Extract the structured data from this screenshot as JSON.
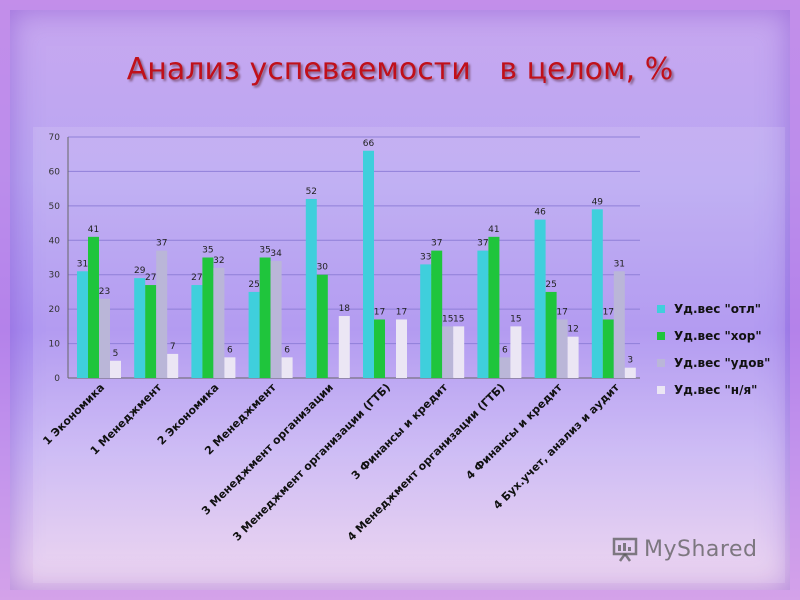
{
  "slide": {
    "title": "Анализ успеваемости   в целом, %",
    "watermark": "MyShared",
    "watermark_icon": "presentation-board-icon"
  },
  "colors": {
    "otl": "#3fcfdc",
    "hor": "#1fc53c",
    "udov": "#bab6d8",
    "nya": "#ebe6f4",
    "title": "#c0101a"
  },
  "chart_data": {
    "type": "bar",
    "categories": [
      "1 Экономика",
      "1 Менеджмент",
      "2 Экономика",
      "2 Менеджмент",
      "3 Менеджмент организации",
      "3 Менеджмент организации (ГТБ)",
      "3 Финансы и кредит",
      "4 Менеджмент организации (ГТБ)",
      "4 Финансы и кредит",
      "4 Бух.учет, анализ и аудит"
    ],
    "series": [
      {
        "name": "Уд.вес \"отл\"",
        "color": "#3fcfdc",
        "values": [
          31,
          29,
          27,
          25,
          52,
          66,
          33,
          37,
          46,
          49
        ]
      },
      {
        "name": "Уд.вес \"хор\"",
        "color": "#1fc53c",
        "values": [
          41,
          27,
          35,
          35,
          30,
          17,
          37,
          41,
          25,
          17
        ]
      },
      {
        "name": "Уд.вес \"удов\"",
        "color": "#bab6d8",
        "values": [
          23,
          37,
          32,
          34,
          null,
          null,
          15,
          6,
          17,
          31
        ]
      },
      {
        "name": "Уд.вес \"н/я\"",
        "color": "#ebe6f4",
        "values": [
          5,
          7,
          6,
          6,
          18,
          17,
          15,
          15,
          12,
          3
        ]
      }
    ],
    "ylim": [
      0,
      70
    ],
    "yticks": [
      0,
      10,
      20,
      30,
      40,
      50,
      60,
      70
    ],
    "grid": true,
    "legend": "right"
  }
}
